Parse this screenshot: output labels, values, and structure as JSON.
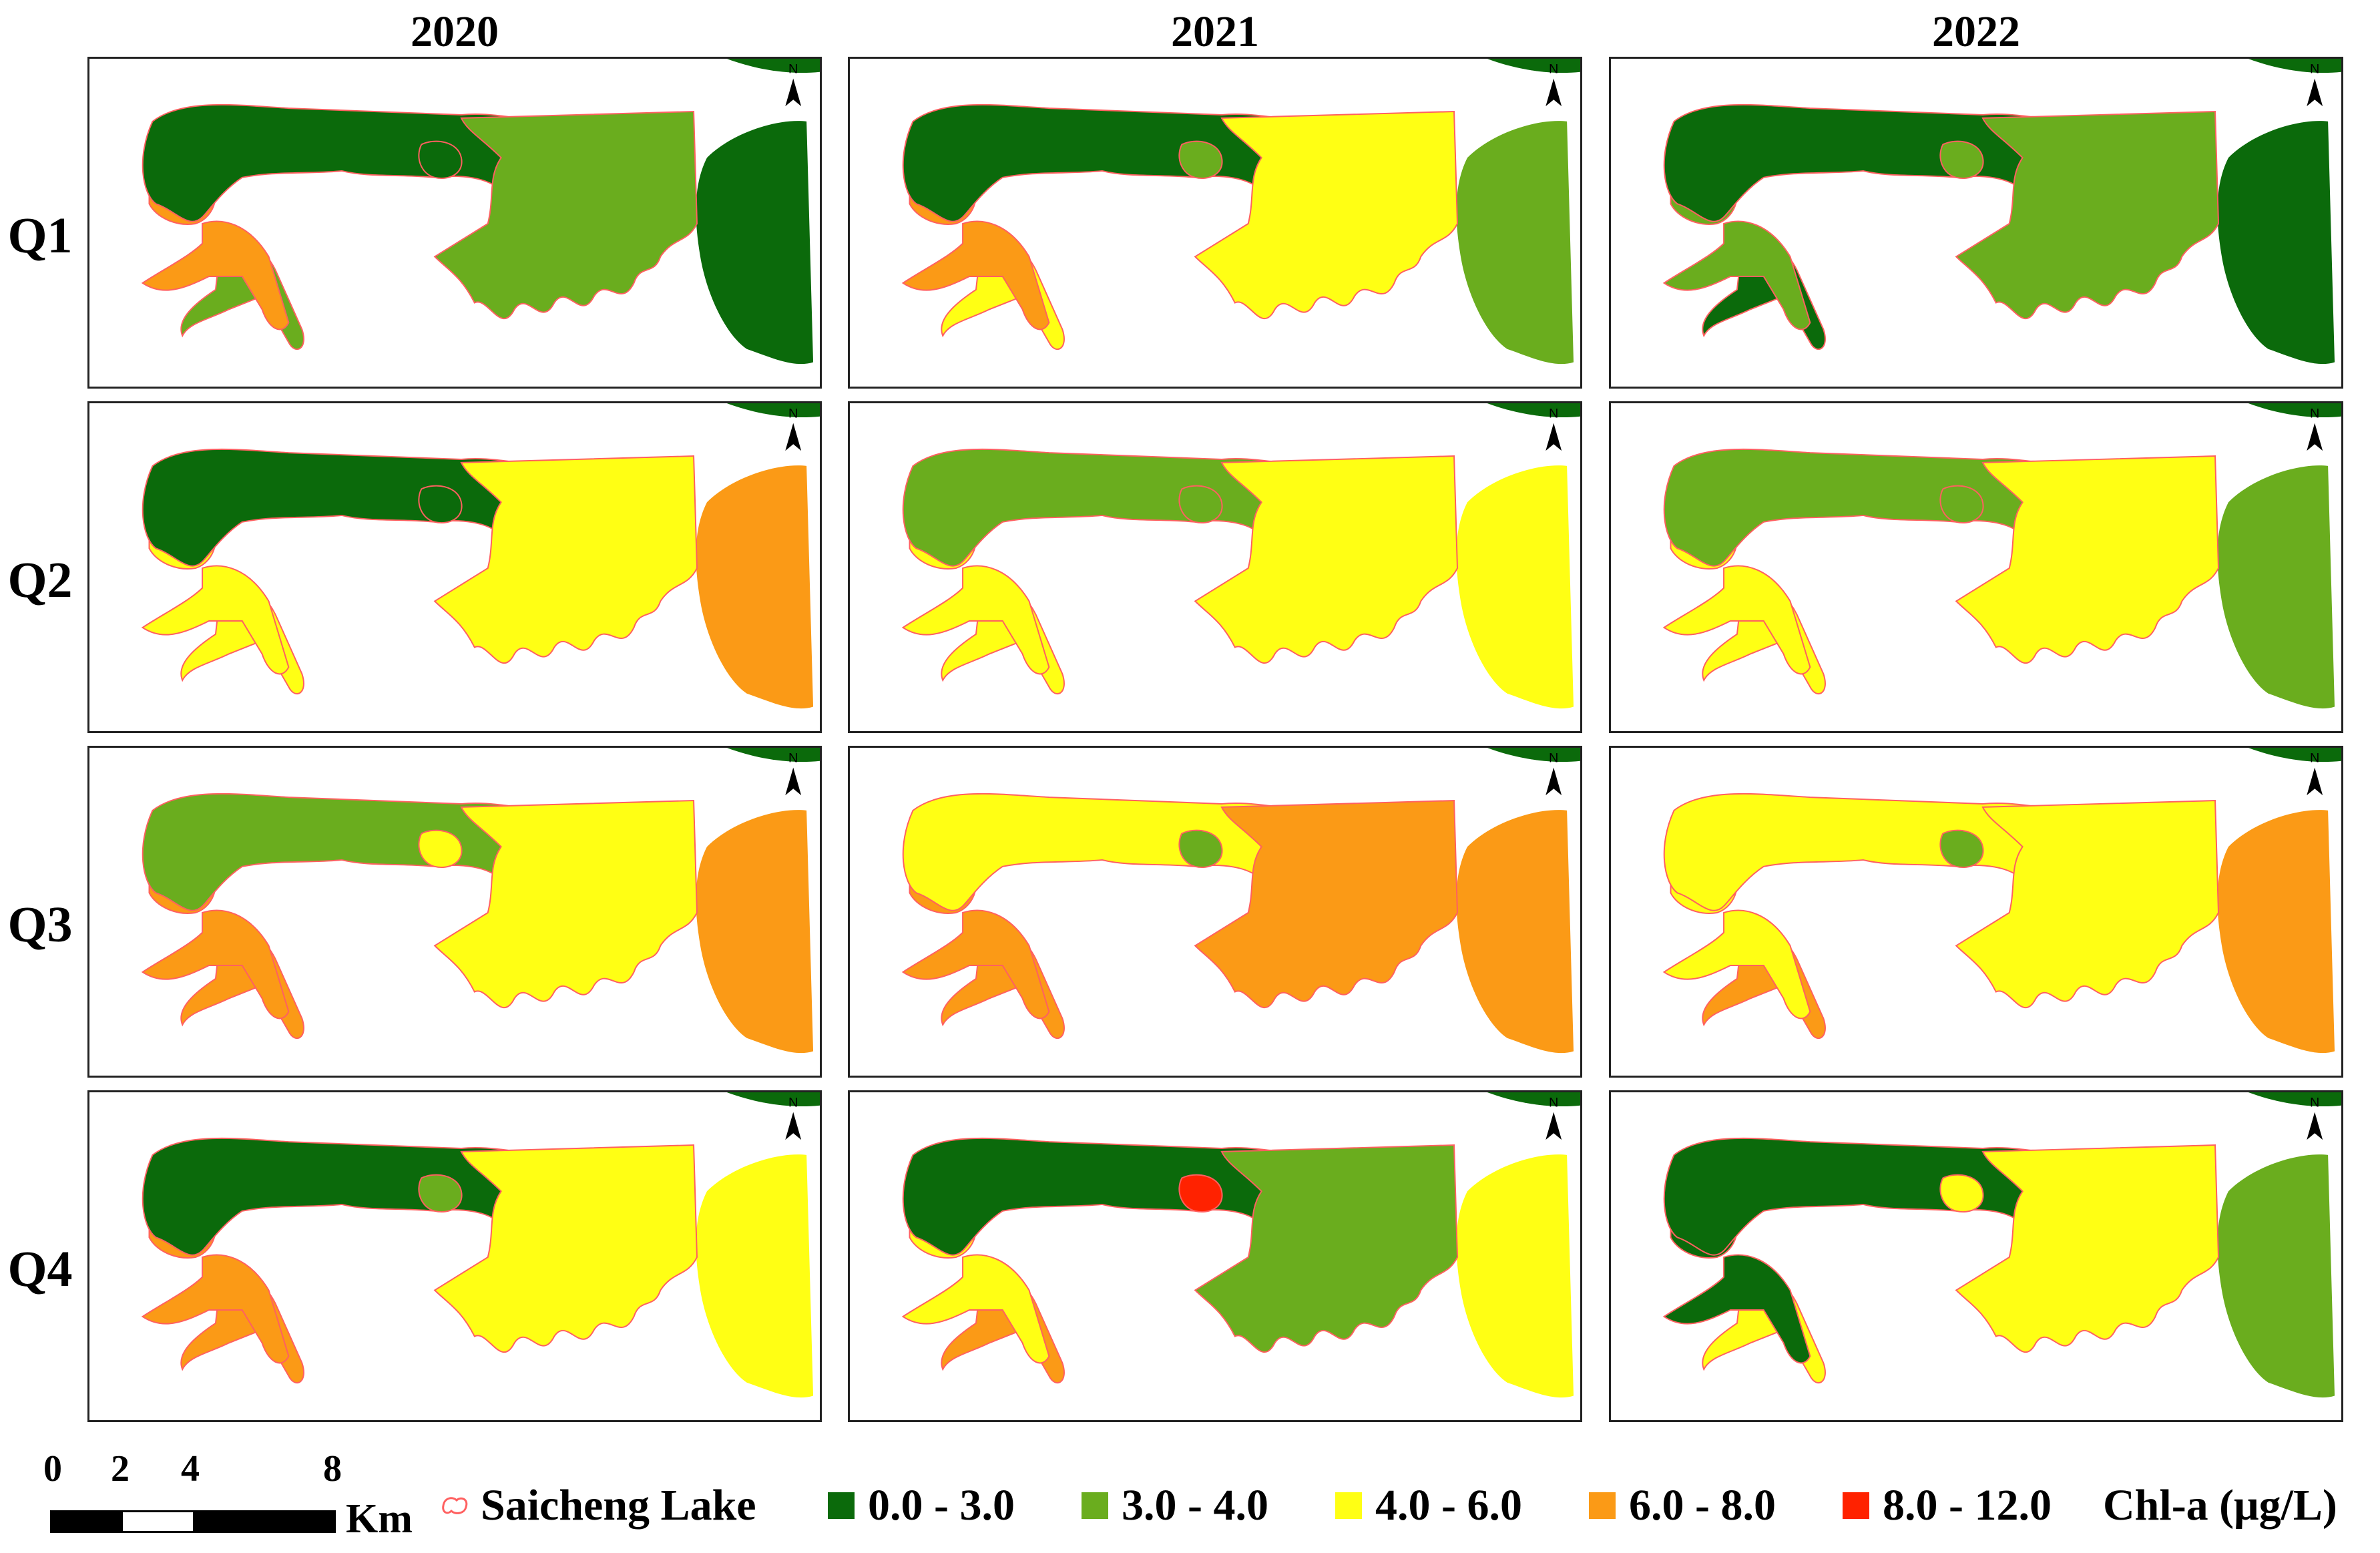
{
  "years": [
    "2020",
    "2021",
    "2022"
  ],
  "quarters": [
    "Q1",
    "Q2",
    "Q3",
    "Q4"
  ],
  "north_label": "N",
  "scale_bar": {
    "ticks": [
      "0",
      "2",
      "4",
      "8"
    ],
    "unit": "Km"
  },
  "legend": {
    "boundary_label": "Saicheng Lake",
    "boundary_color": "#ff6060",
    "classes": [
      {
        "label": "0.0 - 3.0",
        "color": "#0b6a0b"
      },
      {
        "label": "3.0 - 4.0",
        "color": "#6aad1e"
      },
      {
        "label": "4.0 - 6.0",
        "color": "#ffff14"
      },
      {
        "label": "6.0 - 8.0",
        "color": "#fb9a16"
      },
      {
        "label": "8.0 - 12.0",
        "color": "#ff2200"
      }
    ],
    "variable_label": "Chl-a (μg/L)"
  },
  "maps": [
    {
      "year": "2020",
      "quarter": "Q1",
      "main": 0,
      "east": 1,
      "west": 3,
      "south": 1,
      "far_east": 0,
      "patch": 0
    },
    {
      "year": "2021",
      "quarter": "Q1",
      "main": 0,
      "east": 2,
      "west": 3,
      "south": 2,
      "far_east": 1,
      "patch": 1
    },
    {
      "year": "2022",
      "quarter": "Q1",
      "main": 0,
      "east": 1,
      "west": 1,
      "south": 0,
      "far_east": 0,
      "patch": 1
    },
    {
      "year": "2020",
      "quarter": "Q2",
      "main": 0,
      "east": 2,
      "west": 2,
      "south": 2,
      "far_east": 3,
      "patch": 0
    },
    {
      "year": "2021",
      "quarter": "Q2",
      "main": 1,
      "east": 2,
      "west": 2,
      "south": 2,
      "far_east": 2,
      "patch": 1
    },
    {
      "year": "2022",
      "quarter": "Q2",
      "main": 1,
      "east": 2,
      "west": 2,
      "south": 2,
      "far_east": 1,
      "patch": 1
    },
    {
      "year": "2020",
      "quarter": "Q3",
      "main": 1,
      "east": 2,
      "west": 3,
      "south": 3,
      "far_east": 3,
      "patch": 2
    },
    {
      "year": "2021",
      "quarter": "Q3",
      "main": 2,
      "east": 3,
      "west": 3,
      "south": 3,
      "far_east": 3,
      "patch": 1
    },
    {
      "year": "2022",
      "quarter": "Q3",
      "main": 2,
      "east": 2,
      "west": 2,
      "south": 3,
      "far_east": 3,
      "patch": 1
    },
    {
      "year": "2020",
      "quarter": "Q4",
      "main": 0,
      "east": 2,
      "west": 3,
      "south": 3,
      "far_east": 2,
      "patch": 1
    },
    {
      "year": "2021",
      "quarter": "Q4",
      "main": 0,
      "east": 1,
      "west": 2,
      "south": 3,
      "far_east": 2,
      "patch": 4
    },
    {
      "year": "2022",
      "quarter": "Q4",
      "main": 0,
      "east": 2,
      "west": 0,
      "south": 2,
      "far_east": 1,
      "patch": 2
    }
  ]
}
